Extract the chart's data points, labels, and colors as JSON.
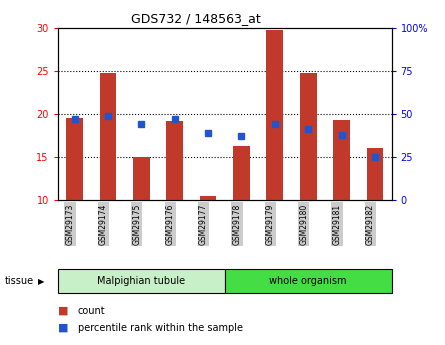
{
  "title": "GDS732 / 148563_at",
  "samples": [
    "GSM29173",
    "GSM29174",
    "GSM29175",
    "GSM29176",
    "GSM29177",
    "GSM29178",
    "GSM29179",
    "GSM29180",
    "GSM29181",
    "GSM29182"
  ],
  "counts": [
    19.5,
    24.7,
    15.0,
    19.2,
    10.5,
    16.3,
    29.7,
    24.7,
    19.3,
    16.0
  ],
  "percentiles_pct": [
    47,
    49,
    44,
    47,
    39,
    37,
    44,
    41,
    38,
    25
  ],
  "ylim_left": [
    10,
    30
  ],
  "ylim_right": [
    0,
    100
  ],
  "yticks_left": [
    10,
    15,
    20,
    25,
    30
  ],
  "yticks_right": [
    0,
    25,
    50,
    75,
    100
  ],
  "ytick_labels_right": [
    "0",
    "25",
    "50",
    "75",
    "100%"
  ],
  "bar_color": "#c0392b",
  "dot_color": "#2255cc",
  "tissue_groups": [
    {
      "label": "Malpighian tubule",
      "start": 0,
      "end": 5,
      "color": "#c8f0c8"
    },
    {
      "label": "whole organism",
      "start": 5,
      "end": 10,
      "color": "#44dd44"
    }
  ],
  "legend_bar_label": "count",
  "legend_dot_label": "percentile rank within the sample",
  "bar_width": 0.5,
  "baseline": 10
}
